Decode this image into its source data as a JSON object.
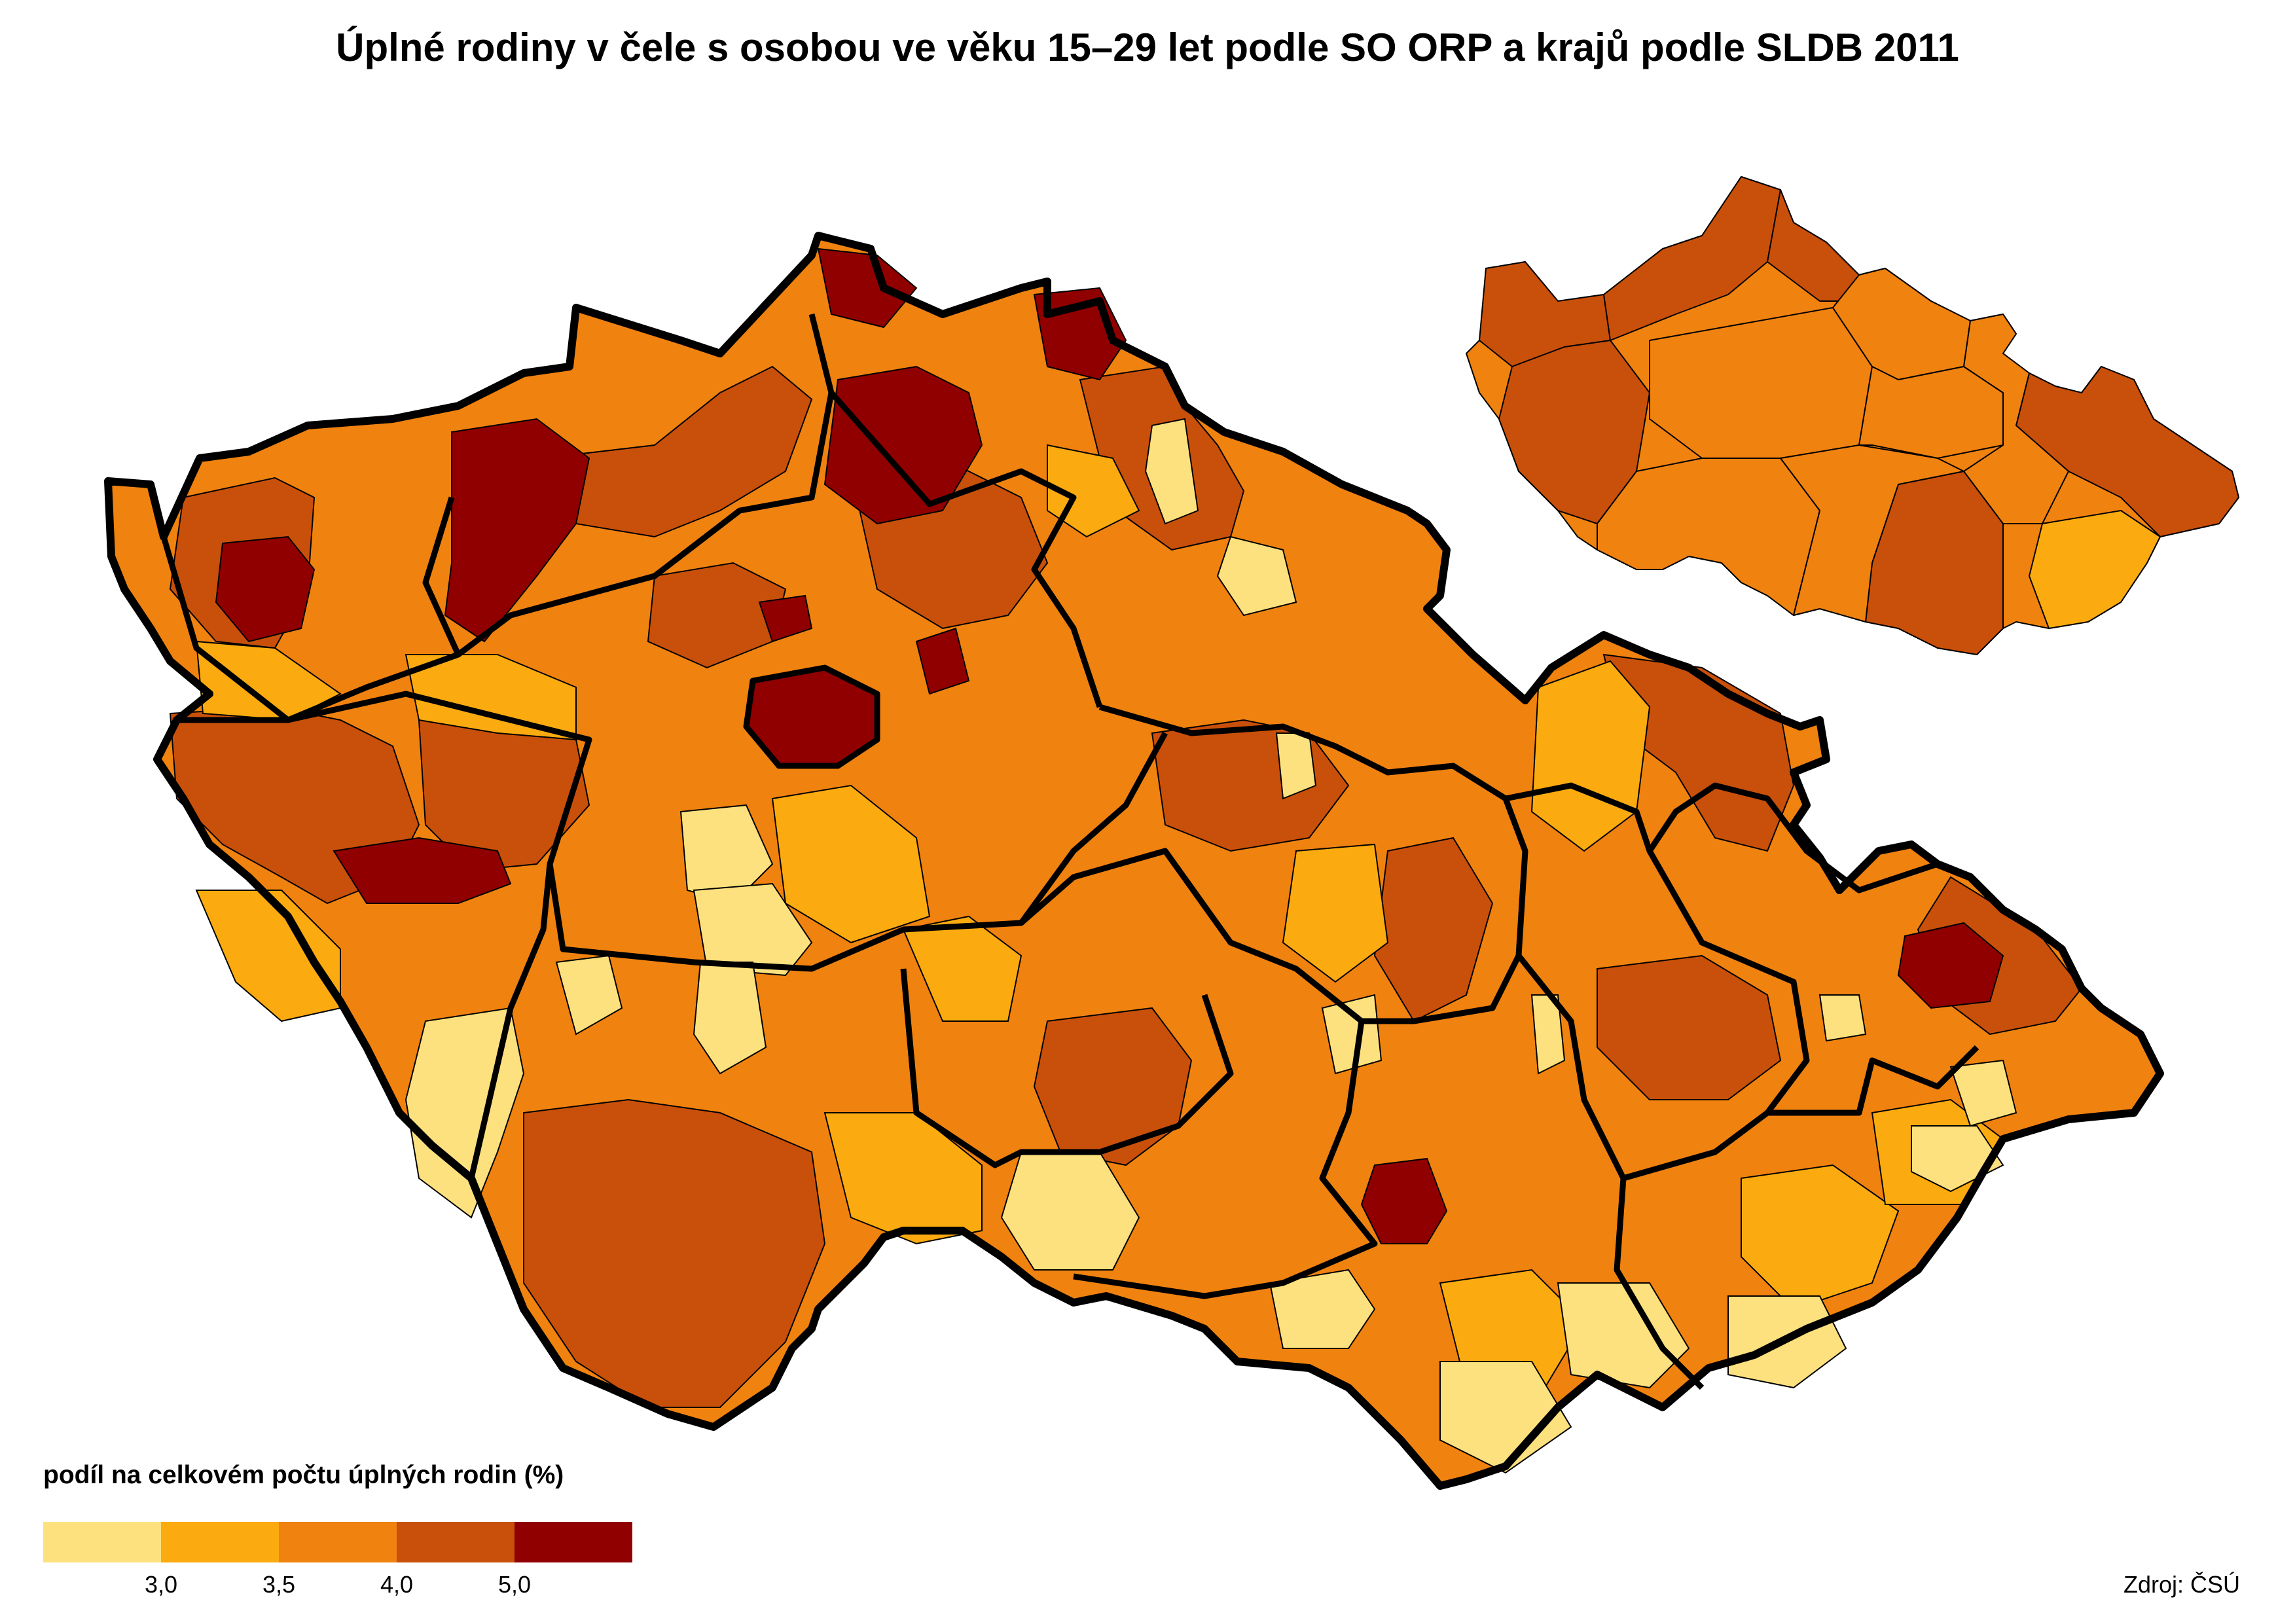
{
  "title": "Úplné rodiny v čele s osobou ve věku 15–29 let podle SO ORP a krajů podle SLDB 2011",
  "legend": {
    "title": "podíl na celkovém počtu úplných rodin (%)",
    "colors": [
      "#fde17e",
      "#fbab0f",
      "#f0820f",
      "#c9500a",
      "#900000"
    ],
    "ticks": [
      "3,0",
      "3,5",
      "4,0",
      "5,0"
    ]
  },
  "map_colors": {
    "border": "#000000",
    "light": "#fde17e",
    "mid_light": "#fbab0f",
    "mid": "#f0820f",
    "mid_dark": "#c9500a",
    "dark": "#900000"
  },
  "source": "Zdroj: ČSÚ"
}
